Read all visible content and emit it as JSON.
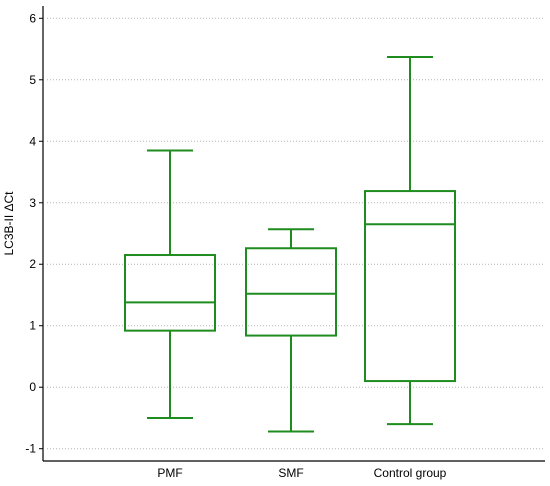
{
  "chart_data": {
    "type": "box",
    "title": "",
    "xlabel": "",
    "ylabel": "LC3B-II ΔCt",
    "ylim": [
      -1.2,
      6.2
    ],
    "yticks": [
      "-1",
      "0",
      "1",
      "2",
      "3",
      "4",
      "5",
      "6"
    ],
    "ytick_values": [
      -1,
      0,
      1,
      2,
      3,
      4,
      5,
      6
    ],
    "grid": true,
    "color": "#1e8c1e",
    "categories": [
      "PMF",
      "SMF",
      "Control group"
    ],
    "boxes": [
      {
        "name": "PMF",
        "min": -0.5,
        "q1": 0.92,
        "median": 1.38,
        "q3": 2.15,
        "max": 3.85
      },
      {
        "name": "SMF",
        "min": -0.72,
        "q1": 0.84,
        "median": 1.52,
        "q3": 2.26,
        "max": 2.57
      },
      {
        "name": "Control group",
        "min": -0.6,
        "q1": 0.1,
        "median": 2.65,
        "q3": 3.19,
        "max": 5.37
      }
    ]
  }
}
